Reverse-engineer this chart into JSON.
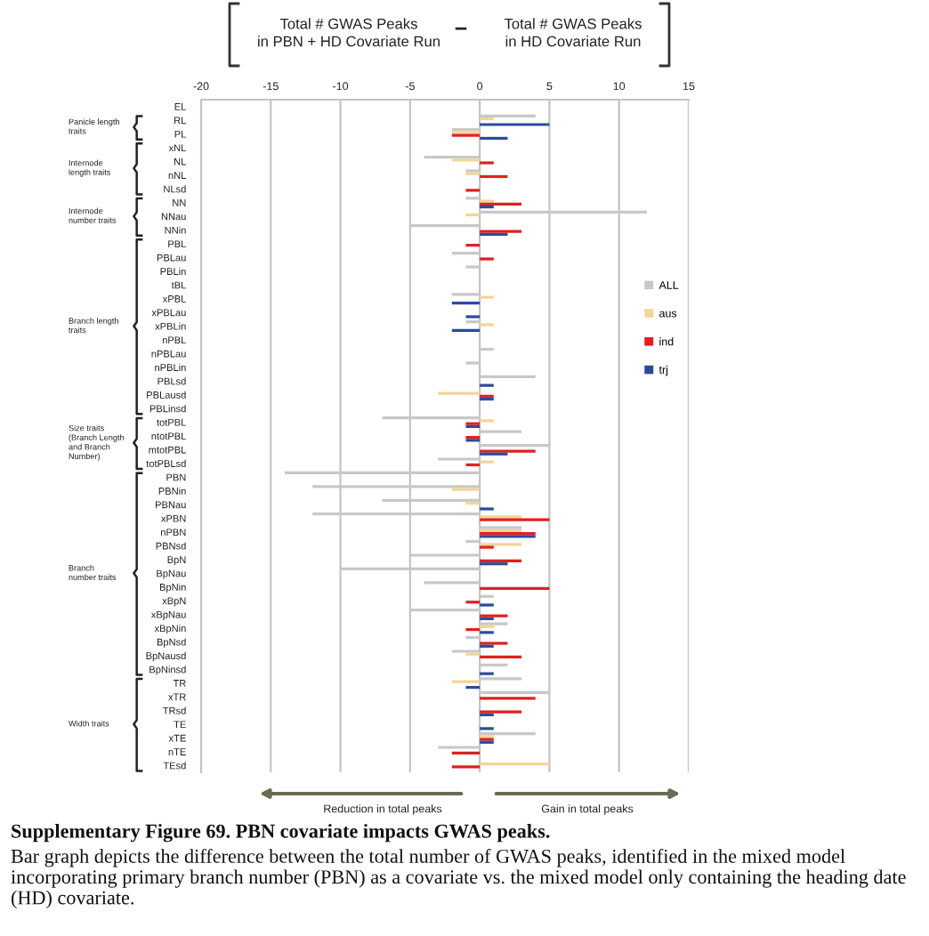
{
  "chart_data": {
    "type": "bar",
    "orientation": "horizontal",
    "categories": [
      "EL",
      "RL",
      "PL",
      "xNL",
      "NL",
      "nNL",
      "NLsd",
      "NN",
      "NNau",
      "NNin",
      "PBL",
      "PBLau",
      "PBLin",
      "tBL",
      "xPBL",
      "xPBLau",
      "xPBLin",
      "nPBL",
      "nPBLau",
      "nPBLin",
      "PBLsd",
      "PBLausd",
      "PBLinsd",
      "totPBL",
      "ntotPBL",
      "mtotPBL",
      "totPBLsd",
      "PBN",
      "PBNin",
      "PBNau",
      "xPBN",
      "nPBN",
      "PBNsd",
      "BpN",
      "BpNau",
      "BpNin",
      "xBpN",
      "xBpNau",
      "xBpNin",
      "BpNsd",
      "BpNausd",
      "BpNinsd",
      "TR",
      "xTR",
      "TRsd",
      "TE",
      "xTE",
      "nTE",
      "TEsd"
    ],
    "series": [
      {
        "name": "ALL",
        "color": "#c8c8c8",
        "values": [
          0,
          4,
          -2,
          0,
          -4,
          -1,
          0,
          -1,
          12,
          -5,
          0,
          -2,
          -1,
          0,
          -2,
          0,
          -1,
          0,
          1,
          -1,
          4,
          0,
          0,
          -7,
          3,
          5,
          -3,
          -14,
          -12,
          -7,
          -12,
          3,
          -1,
          -5,
          -10,
          -4,
          1,
          -5,
          2,
          -1,
          -2,
          2,
          3,
          5,
          0,
          0,
          4,
          -3,
          0
        ]
      },
      {
        "name": "aus",
        "color": "#f2d595",
        "values": [
          0,
          1,
          -2,
          0,
          -2,
          -1,
          0,
          1,
          -1,
          0,
          0,
          0,
          0,
          0,
          1,
          0,
          1,
          0,
          0,
          0,
          0,
          -3,
          0,
          1,
          0,
          0,
          1,
          0,
          -2,
          -1,
          3,
          3,
          3,
          0,
          0,
          0,
          0,
          0,
          1,
          0,
          -1,
          0,
          -2,
          0,
          0,
          0,
          1,
          0,
          5
        ]
      },
      {
        "name": "ind",
        "color": "#e0201f",
        "values": [
          0,
          0,
          -2,
          0,
          1,
          2,
          -1,
          3,
          0,
          3,
          -1,
          1,
          0,
          0,
          0,
          0,
          0,
          0,
          0,
          0,
          0,
          1,
          0,
          -1,
          -1,
          4,
          -1,
          0,
          0,
          0,
          5,
          4,
          1,
          3,
          0,
          5,
          -1,
          2,
          -1,
          2,
          3,
          0,
          0,
          4,
          3,
          0,
          1,
          -2,
          -2
        ]
      },
      {
        "name": "trj",
        "color": "#2b4c9b",
        "values": [
          0,
          5,
          2,
          0,
          0,
          0,
          0,
          1,
          0,
          2,
          0,
          0,
          0,
          0,
          -2,
          -1,
          -2,
          0,
          0,
          0,
          1,
          1,
          0,
          -1,
          -1,
          2,
          0,
          0,
          0,
          1,
          0,
          4,
          0,
          2,
          0,
          0,
          1,
          1,
          1,
          1,
          0,
          1,
          -1,
          0,
          1,
          1,
          1,
          0,
          0
        ]
      }
    ],
    "xlim": [
      -20,
      15
    ],
    "xticks": [
      -20,
      -15,
      -10,
      -5,
      0,
      5,
      10,
      15
    ],
    "grid": "x",
    "legend": "right",
    "annotations": [
      "Total # GWAS Peaks\nin PBN + HD Covariate Run",
      "−",
      "Total # GWAS Peaks\nin HD Covariate Run",
      "Panicle length\ntraits",
      "Internode\nlength traits",
      "Internode\nnumber traits",
      "Branch length\ntraits",
      "Size traits\n(Branch Length\nand Branch\nNumber)",
      "Branch\nnumber traits",
      "Width traits",
      "Reduction in total peaks",
      "Gain in total peaks",
      "Supplementary Figure 69. PBN covariate impacts GWAS peaks.",
      "Bar graph depicts the difference between the total number of GWAS peaks, identified in the mixed model incorporating primary branch number (PBN) as a covariate vs. the mixed model only containing the heading date (HD) covariate."
    ]
  }
}
